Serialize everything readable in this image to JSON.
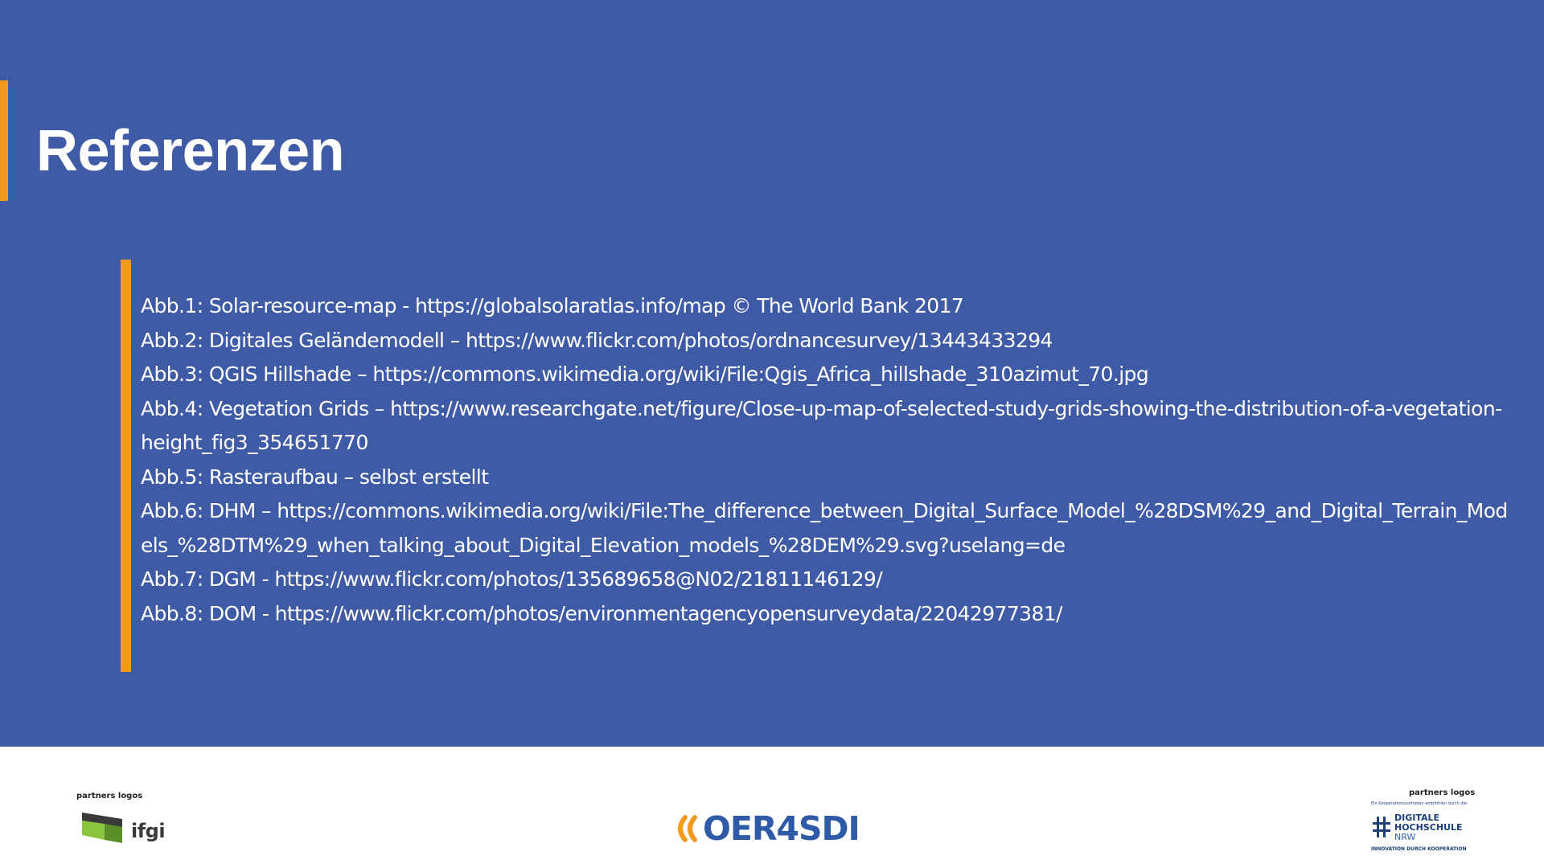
{
  "slide": {
    "title": "Referenzen"
  },
  "references": [
    "Abb.1: Solar-resource-map - https://globalsolaratlas.info/map © The World Bank 2017",
    "Abb.2: Digitales Geländemodell – https://www.flickr.com/photos/ordnancesurvey/13443433294",
    "Abb.3: QGIS Hillshade – https://commons.wikimedia.org/wiki/File:Qgis_Africa_hillshade_310azimut_70.jpg",
    "Abb.4: Vegetation Grids – https://www.researchgate.net/figure/Close-up-map-of-selected-study-grids-showing-the-distribution-of-a-vegetation-height_fig3_354651770",
    "Abb.5: Rasteraufbau – selbst erstellt",
    "Abb.6: DHM  – https://commons.wikimedia.org/wiki/File:The_difference_between_Digital_Surface_Model_%28DSM%29_and_Digital_Terrain_Models_%28DTM%29_when_talking_about_Digital_Elevation_models_%28DEM%29.svg?uselang=de",
    "Abb.7: DGM - https://www.flickr.com/photos/135689658@N02/21811146129/",
    "Abb.8: DOM - https://www.flickr.com/photos/environmentagencyopensurveydata/22042977381/"
  ],
  "footer": {
    "left_label": "partners logos",
    "left_logo_text": "ifgi",
    "center_logo_text": "OER4SDI",
    "right_label": "partners logos",
    "right_tagline": "Ein Kooperationsvorhaben empfohlen durch die:",
    "right_logo_line1": "DIGITALE",
    "right_logo_line2": "HOCHSCHULE",
    "right_logo_line3": "NRW",
    "right_motto": "INNOVATION DURCH KOOPERATION"
  },
  "colors": {
    "background_blue": "#3f5ba5",
    "accent_orange": "#f39a21",
    "text_white": "#ffffff",
    "oer_blue": "#2e5aa8",
    "ifgi_green": "#8cc63f"
  },
  "icons": {
    "ifgi": "ifgi-logo-icon",
    "oer_chevrons": "oer-chevron-icon",
    "digitale_hochschule": "hash-logo-icon"
  }
}
